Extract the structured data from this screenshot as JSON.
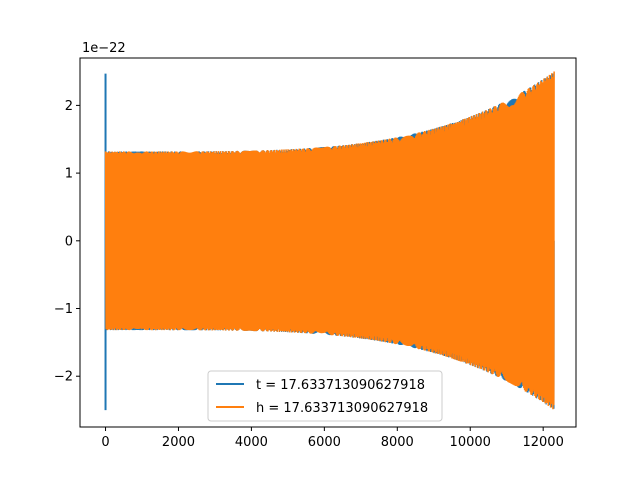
{
  "chart_data": {
    "type": "line",
    "title": "",
    "xlabel": "",
    "ylabel": "",
    "y_offset_text": "1e−22",
    "xlim": [
      -700,
      12900
    ],
    "ylim": [
      -2.75,
      2.7
    ],
    "y_scale_exponent": -22,
    "x_ticks": [
      0,
      2000,
      4000,
      6000,
      8000,
      10000,
      12000
    ],
    "x_tick_labels": [
      "0",
      "2000",
      "4000",
      "6000",
      "8000",
      "10000",
      "12000"
    ],
    "y_ticks": [
      -2,
      -1,
      0,
      1,
      2
    ],
    "y_tick_labels": [
      "−2",
      "−1",
      "0",
      "1",
      "2"
    ],
    "grid": false,
    "legend_position": "lower-center",
    "series": [
      {
        "name": "t = 17.633713090627918",
        "color": "#1f77b4",
        "x_range": [
          0,
          12300
        ],
        "spike_at_start": [
          -2.5,
          2.47
        ],
        "envelope_start": 1.32,
        "envelope_end": 2.5,
        "osc_cycles": 340
      },
      {
        "name": "h = 17.633713090627918",
        "color": "#ff7f0e",
        "x_range": [
          0,
          12300
        ],
        "envelope_start": 1.32,
        "envelope_end": 2.5,
        "osc_cycles": 340
      }
    ]
  }
}
